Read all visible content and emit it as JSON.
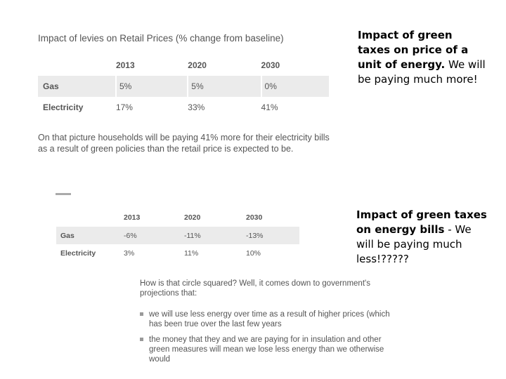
{
  "table1": {
    "title": "Impact of levies on Retail Prices (% change from baseline)",
    "years": [
      "2013",
      "2020",
      "2030"
    ],
    "rows": [
      {
        "label": "Gas",
        "values": [
          "5%",
          "5%",
          "0%"
        ]
      },
      {
        "label": "Electricity",
        "values": [
          "17%",
          "33%",
          "41%"
        ]
      }
    ],
    "note": "On that picture households will be paying 41% more for their electricity bills as a result of green policies than the retail price is expected to be."
  },
  "side1": {
    "bold": "Impact of green taxes on price of a unit of energy.",
    "rest": " We will be paying much more!"
  },
  "table2": {
    "years": [
      "2013",
      "2020",
      "2030"
    ],
    "rows": [
      {
        "label": "Gas",
        "values": [
          "-6%",
          "-11%",
          "-13%"
        ]
      },
      {
        "label": "Electricity",
        "values": [
          "3%",
          "11%",
          "10%"
        ]
      }
    ]
  },
  "side2": {
    "bold": "Impact of green taxes on energy bills",
    "rest": " - We will be paying much less!?????"
  },
  "explain": {
    "question": "How is that circle squared? Well, it comes down to government's projections that:",
    "bullets": [
      "we will use less energy over time as a result of higher prices (which has been true over the last few years",
      "the money that they and we are paying for in insulation and other green measures will mean we lose less energy than we otherwise would"
    ]
  }
}
